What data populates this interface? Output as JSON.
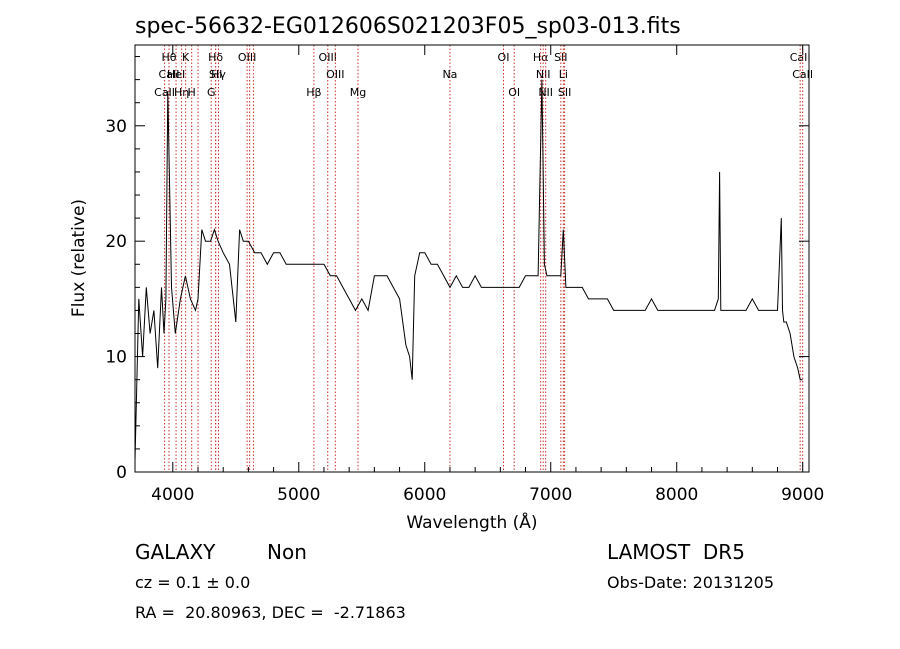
{
  "chart_data": {
    "type": "line",
    "title": "spec-56632-EG012606S021203F05_sp03-013.fits",
    "xlabel": "Wavelength (Å)",
    "ylabel": "Flux (relative)",
    "xlim": [
      3700,
      9050
    ],
    "ylim": [
      0,
      37
    ],
    "xticks": [
      4000,
      5000,
      6000,
      7000,
      8000,
      9000
    ],
    "yticks": [
      0,
      10,
      20,
      30
    ],
    "grid": false,
    "series": [
      {
        "color": "#000000",
        "x": [
          3700,
          3730,
          3760,
          3790,
          3820,
          3850,
          3880,
          3910,
          3930,
          3945,
          3960,
          3990,
          4020,
          4060,
          4100,
          4140,
          4180,
          4200,
          4230,
          4260,
          4300,
          4330,
          4360,
          4400,
          4450,
          4500,
          4530,
          4560,
          4600,
          4650,
          4700,
          4750,
          4800,
          4850,
          4900,
          4950,
          5000,
          5050,
          5100,
          5150,
          5200,
          5250,
          5300,
          5350,
          5400,
          5450,
          5500,
          5550,
          5600,
          5650,
          5700,
          5750,
          5800,
          5850,
          5880,
          5900,
          5920,
          5940,
          5960,
          6000,
          6050,
          6100,
          6150,
          6200,
          6250,
          6300,
          6350,
          6400,
          6450,
          6500,
          6550,
          6600,
          6650,
          6700,
          6750,
          6800,
          6850,
          6900,
          6930,
          6950,
          6970,
          7000,
          7050,
          7080,
          7100,
          7120,
          7150,
          7200,
          7250,
          7300,
          7350,
          7400,
          7450,
          7500,
          7550,
          7600,
          7650,
          7700,
          7750,
          7800,
          7850,
          7900,
          7950,
          8000,
          8050,
          8100,
          8150,
          8200,
          8250,
          8300,
          8330,
          8340,
          8350,
          8360,
          8380,
          8400,
          8450,
          8500,
          8550,
          8600,
          8650,
          8700,
          8750,
          8800,
          8830,
          8840,
          8850,
          8870,
          8900,
          8930,
          8960,
          8980,
          9000
        ],
        "y": [
          1,
          15,
          10,
          16,
          12,
          14,
          9,
          16,
          12,
          15,
          33,
          16,
          12,
          15,
          17,
          15,
          14,
          15,
          21,
          20,
          20,
          21,
          20,
          19,
          18,
          13,
          21,
          20,
          20,
          19,
          19,
          18,
          19,
          19,
          18,
          18,
          18,
          18,
          18,
          18,
          18,
          17,
          17,
          16,
          15,
          14,
          15,
          14,
          17,
          17,
          17,
          16,
          15,
          11,
          10,
          8,
          17,
          18,
          19,
          19,
          18,
          18,
          17,
          16,
          17,
          16,
          16,
          17,
          16,
          16,
          16,
          16,
          16,
          16,
          16,
          17,
          17,
          17,
          34,
          18,
          17,
          17,
          17,
          17,
          21,
          16,
          16,
          16,
          16,
          15,
          15,
          15,
          15,
          14,
          14,
          14,
          14,
          14,
          14,
          15,
          14,
          14,
          14,
          14,
          14,
          14,
          14,
          14,
          14,
          14,
          15,
          26,
          14,
          14,
          14,
          14,
          14,
          14,
          14,
          15,
          14,
          14,
          14,
          14,
          22,
          14,
          13,
          13,
          12,
          10,
          9,
          8,
          8
        ]
      }
    ],
    "emission_lines": [
      {
        "x": 3935,
        "label": "CaII",
        "row": 3
      },
      {
        "x": 3970,
        "label": "Hθ",
        "row": 1
      },
      {
        "x": 3970,
        "label": "CaII",
        "row": 2
      },
      {
        "x": 4026,
        "label": "HeI",
        "row": 2
      },
      {
        "x": 4070,
        "label": "Hη",
        "row": 3
      },
      {
        "x": 4102,
        "label": "K",
        "row": 1
      },
      {
        "x": 4150,
        "label": "H",
        "row": 3
      },
      {
        "x": 4200,
        "label": "",
        "row": 0
      },
      {
        "x": 4305,
        "label": "G",
        "row": 3
      },
      {
        "x": 4340,
        "label": "Hδ",
        "row": 1
      },
      {
        "x": 4340,
        "label": "SII",
        "row": 2
      },
      {
        "x": 4363,
        "label": "Hγ",
        "row": 2
      },
      {
        "x": 4590,
        "label": "OIII",
        "row": 1
      },
      {
        "x": 4610,
        "label": "",
        "row": 0
      },
      {
        "x": 4640,
        "label": "",
        "row": 0
      },
      {
        "x": 5120,
        "label": "Hβ",
        "row": 3
      },
      {
        "x": 5230,
        "label": "OIII",
        "row": 1
      },
      {
        "x": 5290,
        "label": "OIII",
        "row": 2
      },
      {
        "x": 5470,
        "label": "Mg",
        "row": 3
      },
      {
        "x": 6200,
        "label": "Na",
        "row": 2
      },
      {
        "x": 6625,
        "label": "OI",
        "row": 1
      },
      {
        "x": 6710,
        "label": "OI",
        "row": 3
      },
      {
        "x": 6920,
        "label": "Hα",
        "row": 1
      },
      {
        "x": 6940,
        "label": "NII",
        "row": 2
      },
      {
        "x": 6960,
        "label": "NII",
        "row": 3
      },
      {
        "x": 7080,
        "label": "SII",
        "row": 1
      },
      {
        "x": 7100,
        "label": "Li",
        "row": 2
      },
      {
        "x": 7110,
        "label": "SII",
        "row": 3
      },
      {
        "x": 8980,
        "label": "CaII",
        "row": 1
      },
      {
        "x": 9000,
        "label": "CaII",
        "row": 2
      }
    ]
  },
  "info": {
    "class": "GALAXY",
    "subclass": "Non",
    "survey": "LAMOST  DR5",
    "cz": "cz = 0.1 ± 0.0",
    "obs_date": "Obs-Date: 20131205",
    "radec": "RA =  20.80963, DEC =  -2.71863"
  }
}
